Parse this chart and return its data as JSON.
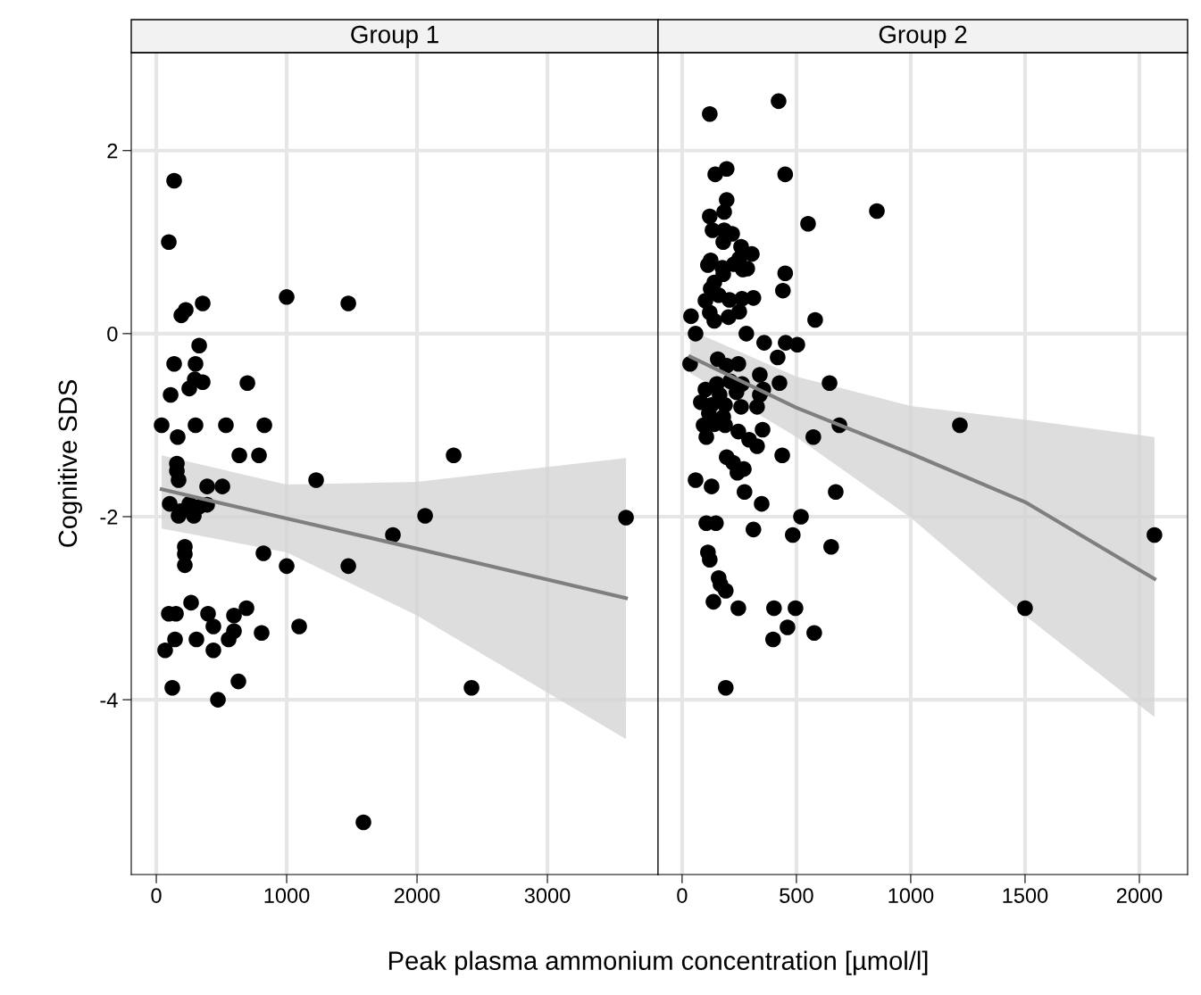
{
  "chart_data": [
    {
      "type": "scatter",
      "title": "Group 1",
      "xlabel": "Peak plasma ammonium concentration [µmol/l]",
      "ylabel": "Cognitive SDS",
      "xlim": [
        -192,
        3849
      ],
      "xticks": [
        0,
        1000,
        2000,
        3000
      ],
      "ylim": [
        -5.91,
        3.07
      ],
      "yticks": [
        -4,
        -2,
        0,
        2
      ],
      "grid": true,
      "series": [
        {
          "marker": "circle",
          "color": "#000000",
          "x": [
            137,
            96,
            192,
            226,
            356,
            1000,
            1473,
            329,
            137,
            301,
            110,
            253,
            295,
            356,
            699,
            41,
            301,
            534,
            829,
            164,
            637,
            788,
            2281,
            158,
            158,
            171,
            390,
            507,
            1226,
            103,
            185,
            253,
            390,
            171,
            288,
            329,
            2062,
            3603,
            1815,
            219,
            219,
            219,
            822,
            1000,
            1473,
            267,
            96,
            151,
            397,
            692,
            596,
            144,
            308,
            438,
            555,
            596,
            808,
            1096,
            68,
            438,
            123,
            630,
            473,
            2418,
            1589
          ],
          "values": [
            1.67,
            1.0,
            0.2,
            0.26,
            0.33,
            0.4,
            0.33,
            -0.13,
            -0.33,
            -0.33,
            -0.67,
            -0.6,
            -0.5,
            -0.53,
            -0.54,
            -1.0,
            -1.0,
            -1.0,
            -1.0,
            -1.13,
            -1.33,
            -1.33,
            -1.33,
            -1.42,
            -1.5,
            -1.6,
            -1.67,
            -1.67,
            -1.6,
            -1.86,
            -1.94,
            -1.86,
            -1.87,
            -1.99,
            -1.99,
            -1.89,
            -1.99,
            -2.01,
            -2.2,
            -2.33,
            -2.41,
            -2.53,
            -2.4,
            -2.54,
            -2.54,
            -2.94,
            -3.06,
            -3.06,
            -3.06,
            -3.0,
            -3.08,
            -3.34,
            -3.34,
            -3.2,
            -3.34,
            -3.25,
            -3.27,
            -3.2,
            -3.46,
            -3.46,
            -3.87,
            -3.8,
            -4.0,
            -3.87,
            -5.34
          ]
        },
        {
          "type": "line",
          "color": "#7f7f7f",
          "x": [
            41,
            1000,
            2000,
            3603
          ],
          "values": [
            -1.7,
            -2.02,
            -2.35,
            -2.89
          ],
          "lower": [
            -2.13,
            -2.39,
            -3.08,
            -4.43
          ],
          "upper": [
            -1.33,
            -1.65,
            -1.62,
            -1.36
          ]
        }
      ]
    },
    {
      "type": "scatter",
      "title": "Group 2",
      "xlim": [
        -105,
        2211
      ],
      "xticks": [
        0,
        500,
        1000,
        1500,
        2000
      ],
      "ylim": [
        -5.91,
        3.07
      ],
      "yticks": [
        -4,
        -2,
        0,
        2
      ],
      "grid": true,
      "tick_labels": "x",
      "series": [
        {
          "marker": "circle",
          "color": "#000000",
          "x": [
            121,
            422,
            145,
            195,
            451,
            551,
            852,
            195,
            184,
            121,
            133,
            184,
            219,
            180,
            258,
            305,
            250,
            113,
            125,
            176,
            227,
            285,
            266,
            451,
            141,
            180,
            441,
            125,
            102,
            160,
            207,
            262,
            312,
            39,
            121,
            250,
            582,
            59,
            141,
            203,
            281,
            359,
            453,
            504,
            418,
            35,
            156,
            195,
            246,
            152,
            211,
            262,
            340,
            426,
            645,
            102,
            164,
            238,
            340,
            355,
            82,
            129,
            188,
            258,
            328,
            117,
            180,
            94,
            141,
            188,
            688,
            1215,
            106,
            352,
            246,
            574,
            293,
            328,
            438,
            195,
            223,
            270,
            242,
            59,
            129,
            273,
            672,
            348,
            520,
            106,
            148,
            312,
            484,
            2066,
            113,
            121,
            652,
            160,
            168,
            191,
            137,
            246,
            402,
            496,
            1500,
            461,
            398,
            578,
            191
          ],
          "values": [
            2.4,
            2.54,
            1.74,
            1.8,
            1.74,
            1.2,
            1.34,
            1.46,
            1.33,
            1.28,
            1.13,
            1.13,
            1.09,
            1.0,
            0.95,
            0.87,
            0.82,
            0.75,
            0.8,
            0.72,
            0.76,
            0.71,
            0.7,
            0.66,
            0.56,
            0.65,
            0.47,
            0.49,
            0.36,
            0.42,
            0.37,
            0.38,
            0.39,
            0.19,
            0.23,
            0.24,
            0.15,
            0.0,
            0.14,
            0.18,
            0.0,
            -0.1,
            -0.1,
            -0.12,
            -0.26,
            -0.33,
            -0.28,
            -0.35,
            -0.33,
            -0.55,
            -0.52,
            -0.55,
            -0.45,
            -0.54,
            -0.54,
            -0.61,
            -0.67,
            -0.64,
            -0.67,
            -0.61,
            -0.75,
            -0.78,
            -0.78,
            -0.8,
            -0.8,
            -0.87,
            -0.91,
            -1.0,
            -0.99,
            -1.0,
            -1.0,
            -1.0,
            -1.13,
            -1.05,
            -1.07,
            -1.13,
            -1.16,
            -1.23,
            -1.33,
            -1.35,
            -1.41,
            -1.48,
            -1.52,
            -1.6,
            -1.67,
            -1.73,
            -1.73,
            -1.86,
            -2.0,
            -2.07,
            -2.07,
            -2.14,
            -2.2,
            -2.2,
            -2.39,
            -2.47,
            -2.33,
            -2.67,
            -2.74,
            -2.81,
            -2.93,
            -3.0,
            -3.0,
            -3.0,
            -3.0,
            -3.21,
            -3.34,
            -3.27,
            -3.87
          ]
        },
        {
          "type": "line",
          "color": "#7f7f7f",
          "x": [
            35,
            500,
            1000,
            1500,
            2066
          ],
          "values": [
            -0.25,
            -0.81,
            -1.31,
            -1.84,
            -2.68
          ],
          "lower": [
            -0.43,
            -1.13,
            -2.01,
            -3.08,
            -4.19
          ],
          "upper": [
            0.04,
            -0.47,
            -0.79,
            -0.94,
            -1.13
          ]
        }
      ]
    }
  ]
}
